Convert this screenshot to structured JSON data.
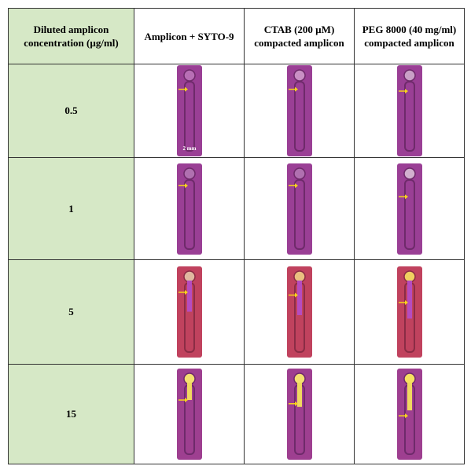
{
  "table": {
    "header": [
      "Diluted amplicon concentration (µg/ml)",
      "Amplicon + SYTO-9",
      "CTAB (200 µM) compacted amplicon",
      "PEG 8000 (40 mg/ml) compacted amplicon"
    ],
    "rows": [
      [
        "0.5"
      ],
      [
        "1"
      ],
      [
        "5"
      ],
      [
        "15"
      ]
    ],
    "scale_bar": "2 mm"
  }
}
